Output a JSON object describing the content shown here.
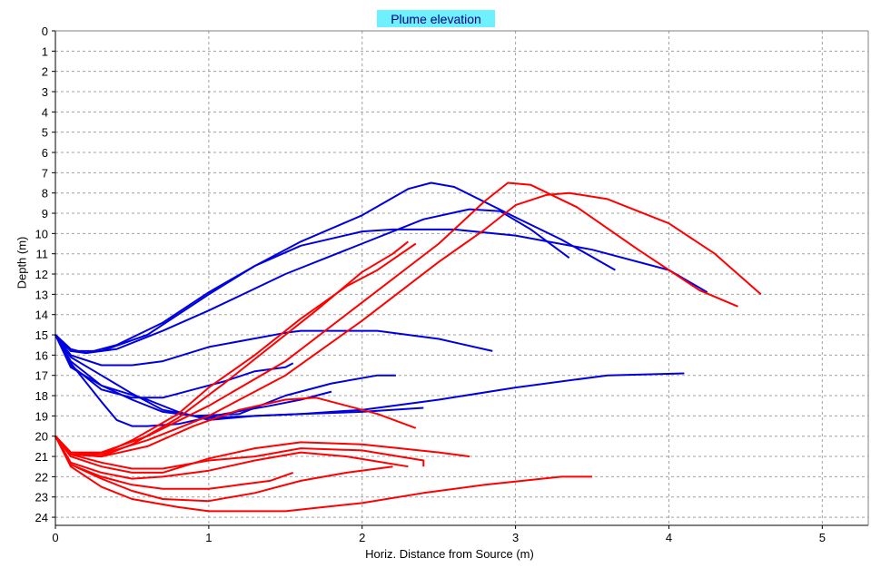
{
  "chart_data": {
    "type": "line",
    "title": "Plume elevation",
    "xlabel": "Horiz. Distance from Source (m)",
    "ylabel": "Depth (m)",
    "xlim": [
      0,
      5.3
    ],
    "ylim": [
      24.4,
      0
    ],
    "y_inverted": true,
    "grid": true,
    "x_ticks": [
      0,
      1,
      2,
      3,
      4,
      5
    ],
    "y_ticks": [
      0,
      1,
      2,
      3,
      4,
      5,
      6,
      7,
      8,
      9,
      10,
      11,
      12,
      13,
      14,
      15,
      16,
      17,
      18,
      19,
      20,
      21,
      22,
      23,
      24
    ],
    "colors": {
      "blue": "#0000e0",
      "red": "#ff0000",
      "title_bg": "#6ff0ff",
      "title_text": "#000080"
    },
    "series": [
      {
        "color": "blue",
        "points": [
          [
            0,
            15
          ],
          [
            0.1,
            15.8
          ],
          [
            0.2,
            15.9
          ],
          [
            0.4,
            15.7
          ],
          [
            0.7,
            14.8
          ],
          [
            1.0,
            13.8
          ],
          [
            1.5,
            12.0
          ],
          [
            2.0,
            10.5
          ],
          [
            2.4,
            9.3
          ],
          [
            2.7,
            8.8
          ],
          [
            2.9,
            8.9
          ],
          [
            3.1,
            9.8
          ],
          [
            3.35,
            11.2
          ]
        ]
      },
      {
        "color": "blue",
        "points": [
          [
            0,
            15
          ],
          [
            0.1,
            15.7
          ],
          [
            0.2,
            15.9
          ],
          [
            0.4,
            15.5
          ],
          [
            0.7,
            14.4
          ],
          [
            1.0,
            12.9
          ],
          [
            1.3,
            11.6
          ],
          [
            1.6,
            10.4
          ],
          [
            2.0,
            9.1
          ],
          [
            2.3,
            7.8
          ],
          [
            2.45,
            7.5
          ],
          [
            2.6,
            7.7
          ],
          [
            3.0,
            9.2
          ],
          [
            3.3,
            10.3
          ],
          [
            3.65,
            11.8
          ]
        ]
      },
      {
        "color": "blue",
        "points": [
          [
            0,
            15
          ],
          [
            0.1,
            15.8
          ],
          [
            0.3,
            15.8
          ],
          [
            0.6,
            15.0
          ],
          [
            1.0,
            13.0
          ],
          [
            1.3,
            11.6
          ],
          [
            1.6,
            10.6
          ],
          [
            2.0,
            9.9
          ],
          [
            2.2,
            9.8
          ],
          [
            2.6,
            9.8
          ],
          [
            3.0,
            10.1
          ],
          [
            3.5,
            10.8
          ],
          [
            4.0,
            11.8
          ],
          [
            4.25,
            12.9
          ]
        ]
      },
      {
        "color": "blue",
        "points": [
          [
            0,
            15
          ],
          [
            0.1,
            16.0
          ],
          [
            0.3,
            16.5
          ],
          [
            0.5,
            16.5
          ],
          [
            0.7,
            16.3
          ],
          [
            1.0,
            15.6
          ],
          [
            1.5,
            14.9
          ],
          [
            1.6,
            14.8
          ],
          [
            2.1,
            14.8
          ],
          [
            2.5,
            15.2
          ],
          [
            2.85,
            15.8
          ]
        ]
      },
      {
        "color": "blue",
        "points": [
          [
            0,
            15
          ],
          [
            0.1,
            16.1
          ],
          [
            0.3,
            17.0
          ],
          [
            0.5,
            17.9
          ],
          [
            0.7,
            18.7
          ],
          [
            0.9,
            19.0
          ],
          [
            1.2,
            18.9
          ],
          [
            1.5,
            18.0
          ],
          [
            1.8,
            17.4
          ],
          [
            2.1,
            17.0
          ],
          [
            2.22,
            17.0
          ]
        ]
      },
      {
        "color": "blue",
        "points": [
          [
            0,
            15
          ],
          [
            0.1,
            16.3
          ],
          [
            0.3,
            17.5
          ],
          [
            0.5,
            18.2
          ],
          [
            0.7,
            18.8
          ],
          [
            1.0,
            19.1
          ],
          [
            1.3,
            19.0
          ],
          [
            1.6,
            18.9
          ],
          [
            2.0,
            18.7
          ],
          [
            2.5,
            18.2
          ],
          [
            3.0,
            17.6
          ],
          [
            3.6,
            17.0
          ],
          [
            4.1,
            16.9
          ]
        ]
      },
      {
        "color": "blue",
        "points": [
          [
            0,
            15
          ],
          [
            0.1,
            16.5
          ],
          [
            0.3,
            17.7
          ],
          [
            0.5,
            18.1
          ],
          [
            0.7,
            18.1
          ],
          [
            0.9,
            17.7
          ],
          [
            1.1,
            17.3
          ],
          [
            1.3,
            16.8
          ],
          [
            1.5,
            16.6
          ],
          [
            1.55,
            16.4
          ]
        ]
      },
      {
        "color": "blue",
        "points": [
          [
            0,
            15
          ],
          [
            0.1,
            16.4
          ],
          [
            0.3,
            18.3
          ],
          [
            0.4,
            19.2
          ],
          [
            0.5,
            19.5
          ],
          [
            0.6,
            19.5
          ],
          [
            0.8,
            19.4
          ],
          [
            1.1,
            18.9
          ],
          [
            1.4,
            18.5
          ],
          [
            1.6,
            18.2
          ],
          [
            1.8,
            17.8
          ]
        ]
      },
      {
        "color": "blue",
        "points": [
          [
            0,
            15
          ],
          [
            0.1,
            16.6
          ],
          [
            0.3,
            17.5
          ],
          [
            0.6,
            18.2
          ],
          [
            0.8,
            18.8
          ],
          [
            1.0,
            19.2
          ],
          [
            1.3,
            19.0
          ],
          [
            1.6,
            18.9
          ],
          [
            2.0,
            18.8
          ],
          [
            2.4,
            18.6
          ]
        ]
      },
      {
        "color": "red",
        "points": [
          [
            0,
            20
          ],
          [
            0.1,
            20.8
          ],
          [
            0.3,
            20.9
          ],
          [
            0.5,
            20.2
          ],
          [
            0.8,
            18.9
          ],
          [
            1.0,
            17.6
          ],
          [
            1.3,
            16.0
          ],
          [
            1.6,
            14.2
          ],
          [
            1.9,
            12.6
          ],
          [
            2.1,
            11.8
          ],
          [
            2.35,
            10.5
          ]
        ]
      },
      {
        "color": "red",
        "points": [
          [
            0,
            20
          ],
          [
            0.1,
            20.9
          ],
          [
            0.3,
            21.0
          ],
          [
            0.5,
            20.4
          ],
          [
            0.8,
            19.1
          ],
          [
            1.1,
            17.4
          ],
          [
            1.4,
            15.6
          ],
          [
            1.7,
            13.8
          ],
          [
            2.0,
            11.9
          ],
          [
            2.2,
            11.0
          ],
          [
            2.3,
            10.4
          ]
        ]
      },
      {
        "color": "red",
        "points": [
          [
            0,
            20
          ],
          [
            0.1,
            20.8
          ],
          [
            0.3,
            20.8
          ],
          [
            0.6,
            20.0
          ],
          [
            1.0,
            18.5
          ],
          [
            1.5,
            16.3
          ],
          [
            2.0,
            13.4
          ],
          [
            2.5,
            10.5
          ],
          [
            2.8,
            8.4
          ],
          [
            2.95,
            7.5
          ],
          [
            3.1,
            7.6
          ],
          [
            3.4,
            8.7
          ],
          [
            3.8,
            10.8
          ],
          [
            4.2,
            12.8
          ],
          [
            4.45,
            13.6
          ]
        ]
      },
      {
        "color": "red",
        "points": [
          [
            0,
            20
          ],
          [
            0.1,
            20.9
          ],
          [
            0.3,
            20.9
          ],
          [
            0.6,
            20.2
          ],
          [
            1.0,
            19.0
          ],
          [
            1.5,
            17.0
          ],
          [
            2.0,
            14.3
          ],
          [
            2.5,
            11.4
          ],
          [
            2.8,
            9.8
          ],
          [
            3.0,
            8.6
          ],
          [
            3.2,
            8.1
          ],
          [
            3.35,
            8.0
          ],
          [
            3.6,
            8.3
          ],
          [
            4.0,
            9.5
          ],
          [
            4.3,
            11.0
          ],
          [
            4.6,
            13.0
          ]
        ]
      },
      {
        "color": "red",
        "points": [
          [
            0,
            20
          ],
          [
            0.1,
            20.9
          ],
          [
            0.3,
            21.0
          ],
          [
            0.6,
            20.5
          ],
          [
            0.9,
            19.5
          ],
          [
            1.2,
            18.7
          ],
          [
            1.5,
            18.2
          ],
          [
            1.7,
            18.1
          ],
          [
            1.9,
            18.5
          ],
          [
            2.1,
            18.9
          ],
          [
            2.35,
            19.6
          ]
        ]
      },
      {
        "color": "red",
        "points": [
          [
            0,
            20
          ],
          [
            0.1,
            20.9
          ],
          [
            0.3,
            21.3
          ],
          [
            0.5,
            21.6
          ],
          [
            0.7,
            21.6
          ],
          [
            1.0,
            21.2
          ],
          [
            1.3,
            21.0
          ],
          [
            1.6,
            20.6
          ],
          [
            2.0,
            20.7
          ],
          [
            2.4,
            21.2
          ],
          [
            2.4,
            21.5
          ]
        ]
      },
      {
        "color": "red",
        "points": [
          [
            0,
            20
          ],
          [
            0.1,
            21.0
          ],
          [
            0.3,
            21.5
          ],
          [
            0.5,
            21.8
          ],
          [
            0.7,
            21.8
          ],
          [
            1.0,
            21.1
          ],
          [
            1.3,
            20.6
          ],
          [
            1.6,
            20.3
          ],
          [
            2.0,
            20.4
          ],
          [
            2.5,
            20.8
          ],
          [
            2.7,
            21.0
          ]
        ]
      },
      {
        "color": "red",
        "points": [
          [
            0,
            20
          ],
          [
            0.1,
            21.3
          ],
          [
            0.3,
            21.8
          ],
          [
            0.5,
            22.1
          ],
          [
            0.7,
            22.0
          ],
          [
            1.0,
            21.7
          ],
          [
            1.3,
            21.2
          ],
          [
            1.6,
            20.8
          ],
          [
            1.9,
            21.0
          ],
          [
            2.3,
            21.5
          ],
          [
            2.3,
            21.5
          ]
        ]
      },
      {
        "color": "red",
        "points": [
          [
            0,
            20
          ],
          [
            0.1,
            21.4
          ],
          [
            0.3,
            22.0
          ],
          [
            0.5,
            22.4
          ],
          [
            0.7,
            22.6
          ],
          [
            1.0,
            22.6
          ],
          [
            1.2,
            22.4
          ],
          [
            1.4,
            22.2
          ],
          [
            1.55,
            21.8
          ]
        ]
      },
      {
        "color": "red",
        "points": [
          [
            0,
            20
          ],
          [
            0.1,
            21.4
          ],
          [
            0.3,
            22.1
          ],
          [
            0.5,
            22.7
          ],
          [
            0.7,
            23.1
          ],
          [
            1.0,
            23.2
          ],
          [
            1.3,
            22.8
          ],
          [
            1.6,
            22.2
          ],
          [
            1.9,
            21.8
          ],
          [
            2.2,
            21.5
          ]
        ]
      },
      {
        "color": "red",
        "points": [
          [
            0,
            20
          ],
          [
            0.1,
            21.5
          ],
          [
            0.3,
            22.5
          ],
          [
            0.5,
            23.1
          ],
          [
            0.8,
            23.5
          ],
          [
            1.0,
            23.7
          ],
          [
            1.5,
            23.7
          ],
          [
            2.0,
            23.3
          ],
          [
            2.4,
            22.8
          ],
          [
            2.8,
            22.4
          ],
          [
            3.3,
            22.0
          ],
          [
            3.5,
            22.0
          ]
        ]
      }
    ]
  }
}
